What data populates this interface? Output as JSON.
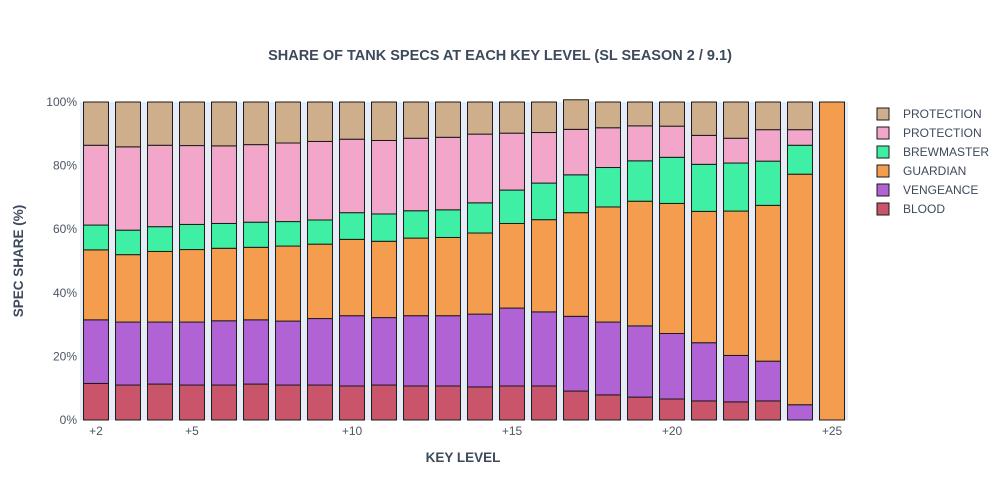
{
  "chart_data": {
    "type": "bar",
    "stacked": true,
    "title": "SHARE OF TANK SPECS AT EACH KEY LEVEL (SL SEASON 2 / 9.1)",
    "xlabel": "KEY LEVEL",
    "ylabel": "SPEC SHARE (%)",
    "ylim": [
      0,
      100
    ],
    "y_ticks": [
      "0%",
      "20%",
      "40%",
      "60%",
      "80%",
      "100%"
    ],
    "x_ticks": [
      {
        "at": 2,
        "label": "+2"
      },
      {
        "at": 5,
        "label": "+5"
      },
      {
        "at": 10,
        "label": "+10"
      },
      {
        "at": 15,
        "label": "+15"
      },
      {
        "at": 20,
        "label": "+20"
      },
      {
        "at": 25,
        "label": "+25"
      }
    ],
    "categories": [
      2,
      3,
      4,
      5,
      6,
      7,
      8,
      9,
      10,
      11,
      12,
      13,
      14,
      15,
      16,
      17,
      18,
      19,
      20,
      21,
      22,
      23,
      24,
      25
    ],
    "legend_position": "right",
    "grid": false,
    "series": [
      {
        "name": "BLOOD",
        "color": "#c9556b",
        "values": [
          11.5,
          11,
          11.3,
          11,
          11,
          11.3,
          11,
          11,
          10.7,
          11,
          10.7,
          10.7,
          10.4,
          10.7,
          10.7,
          9.1,
          7.9,
          7.2,
          6.6,
          6,
          5.7,
          6,
          0,
          0
        ]
      },
      {
        "name": "VENGEANCE",
        "color": "#b163d6",
        "values": [
          20,
          19.8,
          19.5,
          19.8,
          20.2,
          20.2,
          20.1,
          20.9,
          22.1,
          21.2,
          22.1,
          22.1,
          22.9,
          24.5,
          23.3,
          23.5,
          22.9,
          22.4,
          20.6,
          18.3,
          14.6,
          12.5,
          4.8,
          0
        ]
      },
      {
        "name": "GUARDIAN",
        "color": "#f59d4e",
        "values": [
          22,
          21.2,
          22.2,
          22.8,
          22.8,
          22.8,
          23.6,
          23.4,
          24,
          24,
          24.4,
          24.6,
          25.5,
          26.6,
          29,
          32.6,
          36.2,
          39.2,
          40.9,
          41.3,
          45.4,
          49,
          72.5,
          100
        ]
      },
      {
        "name": "BREWMASTER",
        "color": "#3ff0a4",
        "values": [
          7.8,
          7.7,
          7.8,
          7.9,
          7.8,
          7.9,
          7.7,
          7.6,
          8.4,
          8.6,
          8.6,
          8.7,
          9.5,
          10.5,
          11.5,
          11.9,
          12.4,
          12.7,
          14.5,
          14.8,
          15.1,
          13.9,
          9.1,
          0
        ]
      },
      {
        "name": "PROTECTION",
        "color": "#f2a7ca",
        "values": [
          25.1,
          26.2,
          25.6,
          24.8,
          24.4,
          24.4,
          24.7,
          24.7,
          23.1,
          23.1,
          22.8,
          22.8,
          21.6,
          17.9,
          15.9,
          14.3,
          12.5,
          11,
          9.8,
          9.1,
          7.8,
          9.9,
          4.9,
          0
        ]
      },
      {
        "name": "PROTECTION",
        "color": "#cfae8c",
        "values": [
          13.6,
          14.1,
          13.6,
          13.7,
          13.8,
          13.4,
          12.9,
          12.4,
          11.7,
          12.1,
          11.4,
          11.1,
          10.1,
          9.8,
          9.6,
          9.3,
          8.1,
          7.5,
          7.6,
          10.5,
          11.4,
          8.7,
          8.7,
          0
        ]
      }
    ]
  }
}
